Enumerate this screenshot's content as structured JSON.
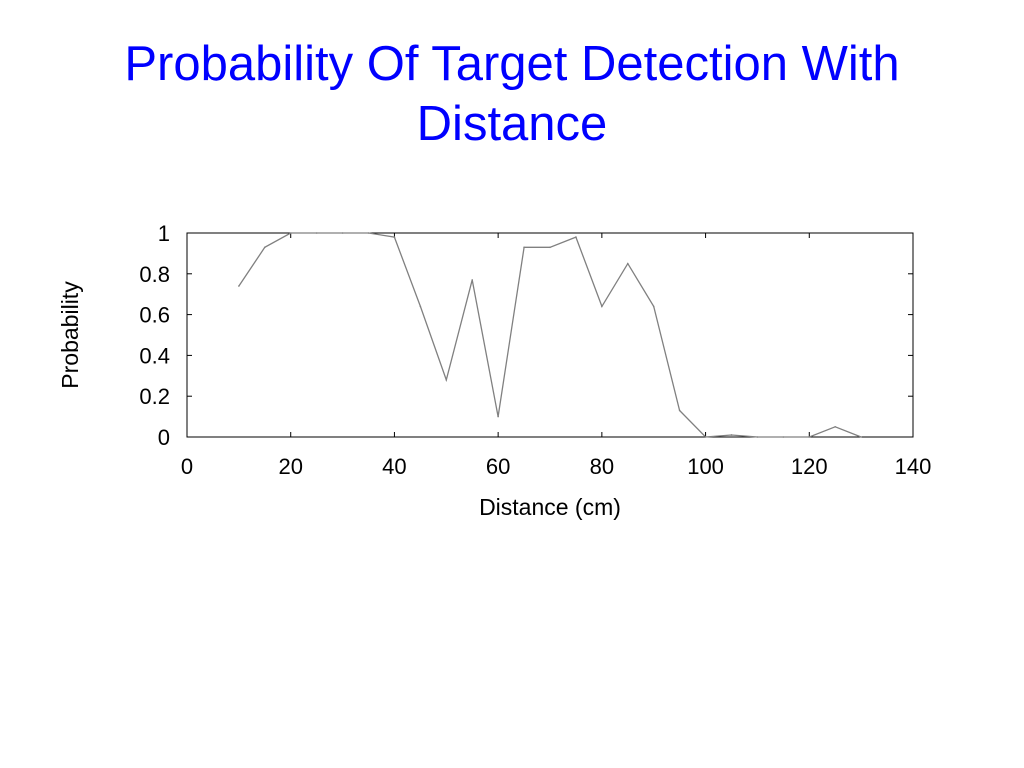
{
  "slide": {
    "title_line1": "Probability Of Target Detection With",
    "title_line2": "Distance",
    "title_color": "#0000ff"
  },
  "chart_data": {
    "type": "line",
    "title": "",
    "xlabel": "Distance (cm)",
    "ylabel": "Probability",
    "xlim": [
      0,
      140
    ],
    "ylim": [
      0,
      1
    ],
    "x_ticks": [
      0,
      20,
      40,
      60,
      80,
      100,
      120,
      140
    ],
    "x_tick_labels": [
      "0",
      "20",
      "40",
      "60",
      "80",
      "100",
      "120",
      "140"
    ],
    "y_ticks": [
      0,
      0.2,
      0.4,
      0.6,
      0.8,
      1
    ],
    "y_tick_labels": [
      "0",
      "0.2",
      "0.4",
      "0.6",
      "0.8",
      "1"
    ],
    "grid": false,
    "legend": "none",
    "line_color": "#808080",
    "series": [
      {
        "x": [
          10,
          15,
          20,
          25,
          30,
          35,
          40,
          45,
          50,
          55,
          60,
          65,
          70,
          75,
          80,
          85,
          90,
          95,
          100,
          105,
          110,
          115,
          120,
          125,
          130
        ],
        "values": [
          0.74,
          0.93,
          1.0,
          1.0,
          1.0,
          1.0,
          0.98,
          0.64,
          0.28,
          0.77,
          0.1,
          0.93,
          0.93,
          0.98,
          0.64,
          0.85,
          0.64,
          0.13,
          0.0,
          0.01,
          0.0,
          0.0,
          0.0,
          0.05,
          0.0
        ]
      }
    ]
  }
}
